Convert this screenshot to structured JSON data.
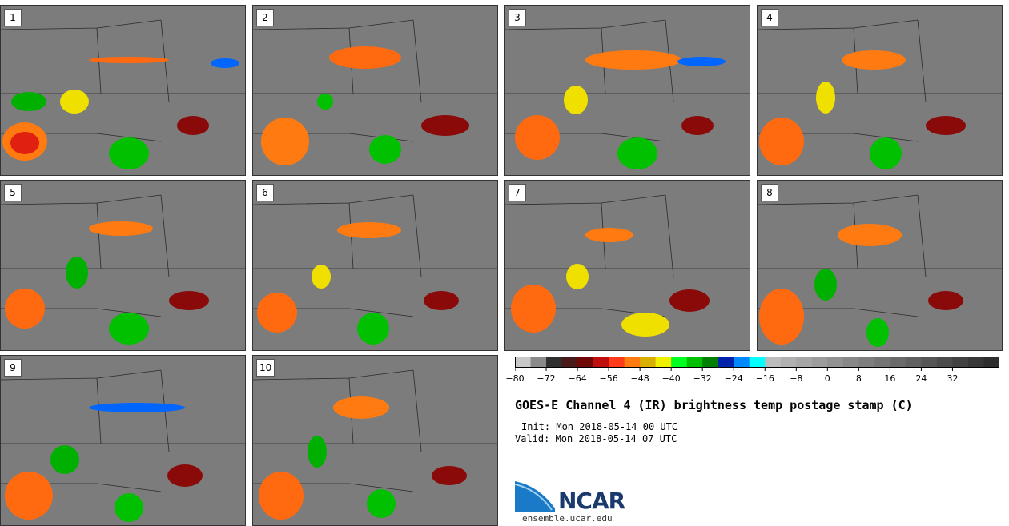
{
  "panels": [
    {
      "label": "1"
    },
    {
      "label": "2"
    },
    {
      "label": "3"
    },
    {
      "label": "4"
    },
    {
      "label": "5"
    },
    {
      "label": "6"
    },
    {
      "label": "7"
    },
    {
      "label": "8"
    },
    {
      "label": "9"
    },
    {
      "label": "10"
    }
  ],
  "colorbar": {
    "colors": [
      "#c8c8c8",
      "#8a8a8a",
      "#303030",
      "#4a1a1a",
      "#700808",
      "#c00d0d",
      "#ff3b1a",
      "#ff7a10",
      "#d9b000",
      "#f0f000",
      "#00ff20",
      "#00c000",
      "#008000",
      "#0022aa",
      "#0088ff",
      "#00ffff",
      "#bcbcbc",
      "#b0b0b0",
      "#a6a6a6",
      "#9c9c9c",
      "#929292",
      "#888888",
      "#7e7e7e",
      "#747474",
      "#6a6a6a",
      "#606060",
      "#565656",
      "#4c4c4c",
      "#424242",
      "#383838",
      "#2e2e2e"
    ],
    "ticks": [
      "−80",
      "−72",
      "−64",
      "−56",
      "−48",
      "−40",
      "−32",
      "−24",
      "−16",
      "−8",
      "0",
      "8",
      "16",
      "24",
      "32"
    ]
  },
  "title": "GOES-E Channel 4 (IR) brightness temp postage stamp (C)",
  "init": "Init: Mon 2018-05-14 00 UTC",
  "valid": "Valid: Mon 2018-05-14 07 UTC",
  "logo_text": "NCAR",
  "website": "ensemble.ucar.edu"
}
